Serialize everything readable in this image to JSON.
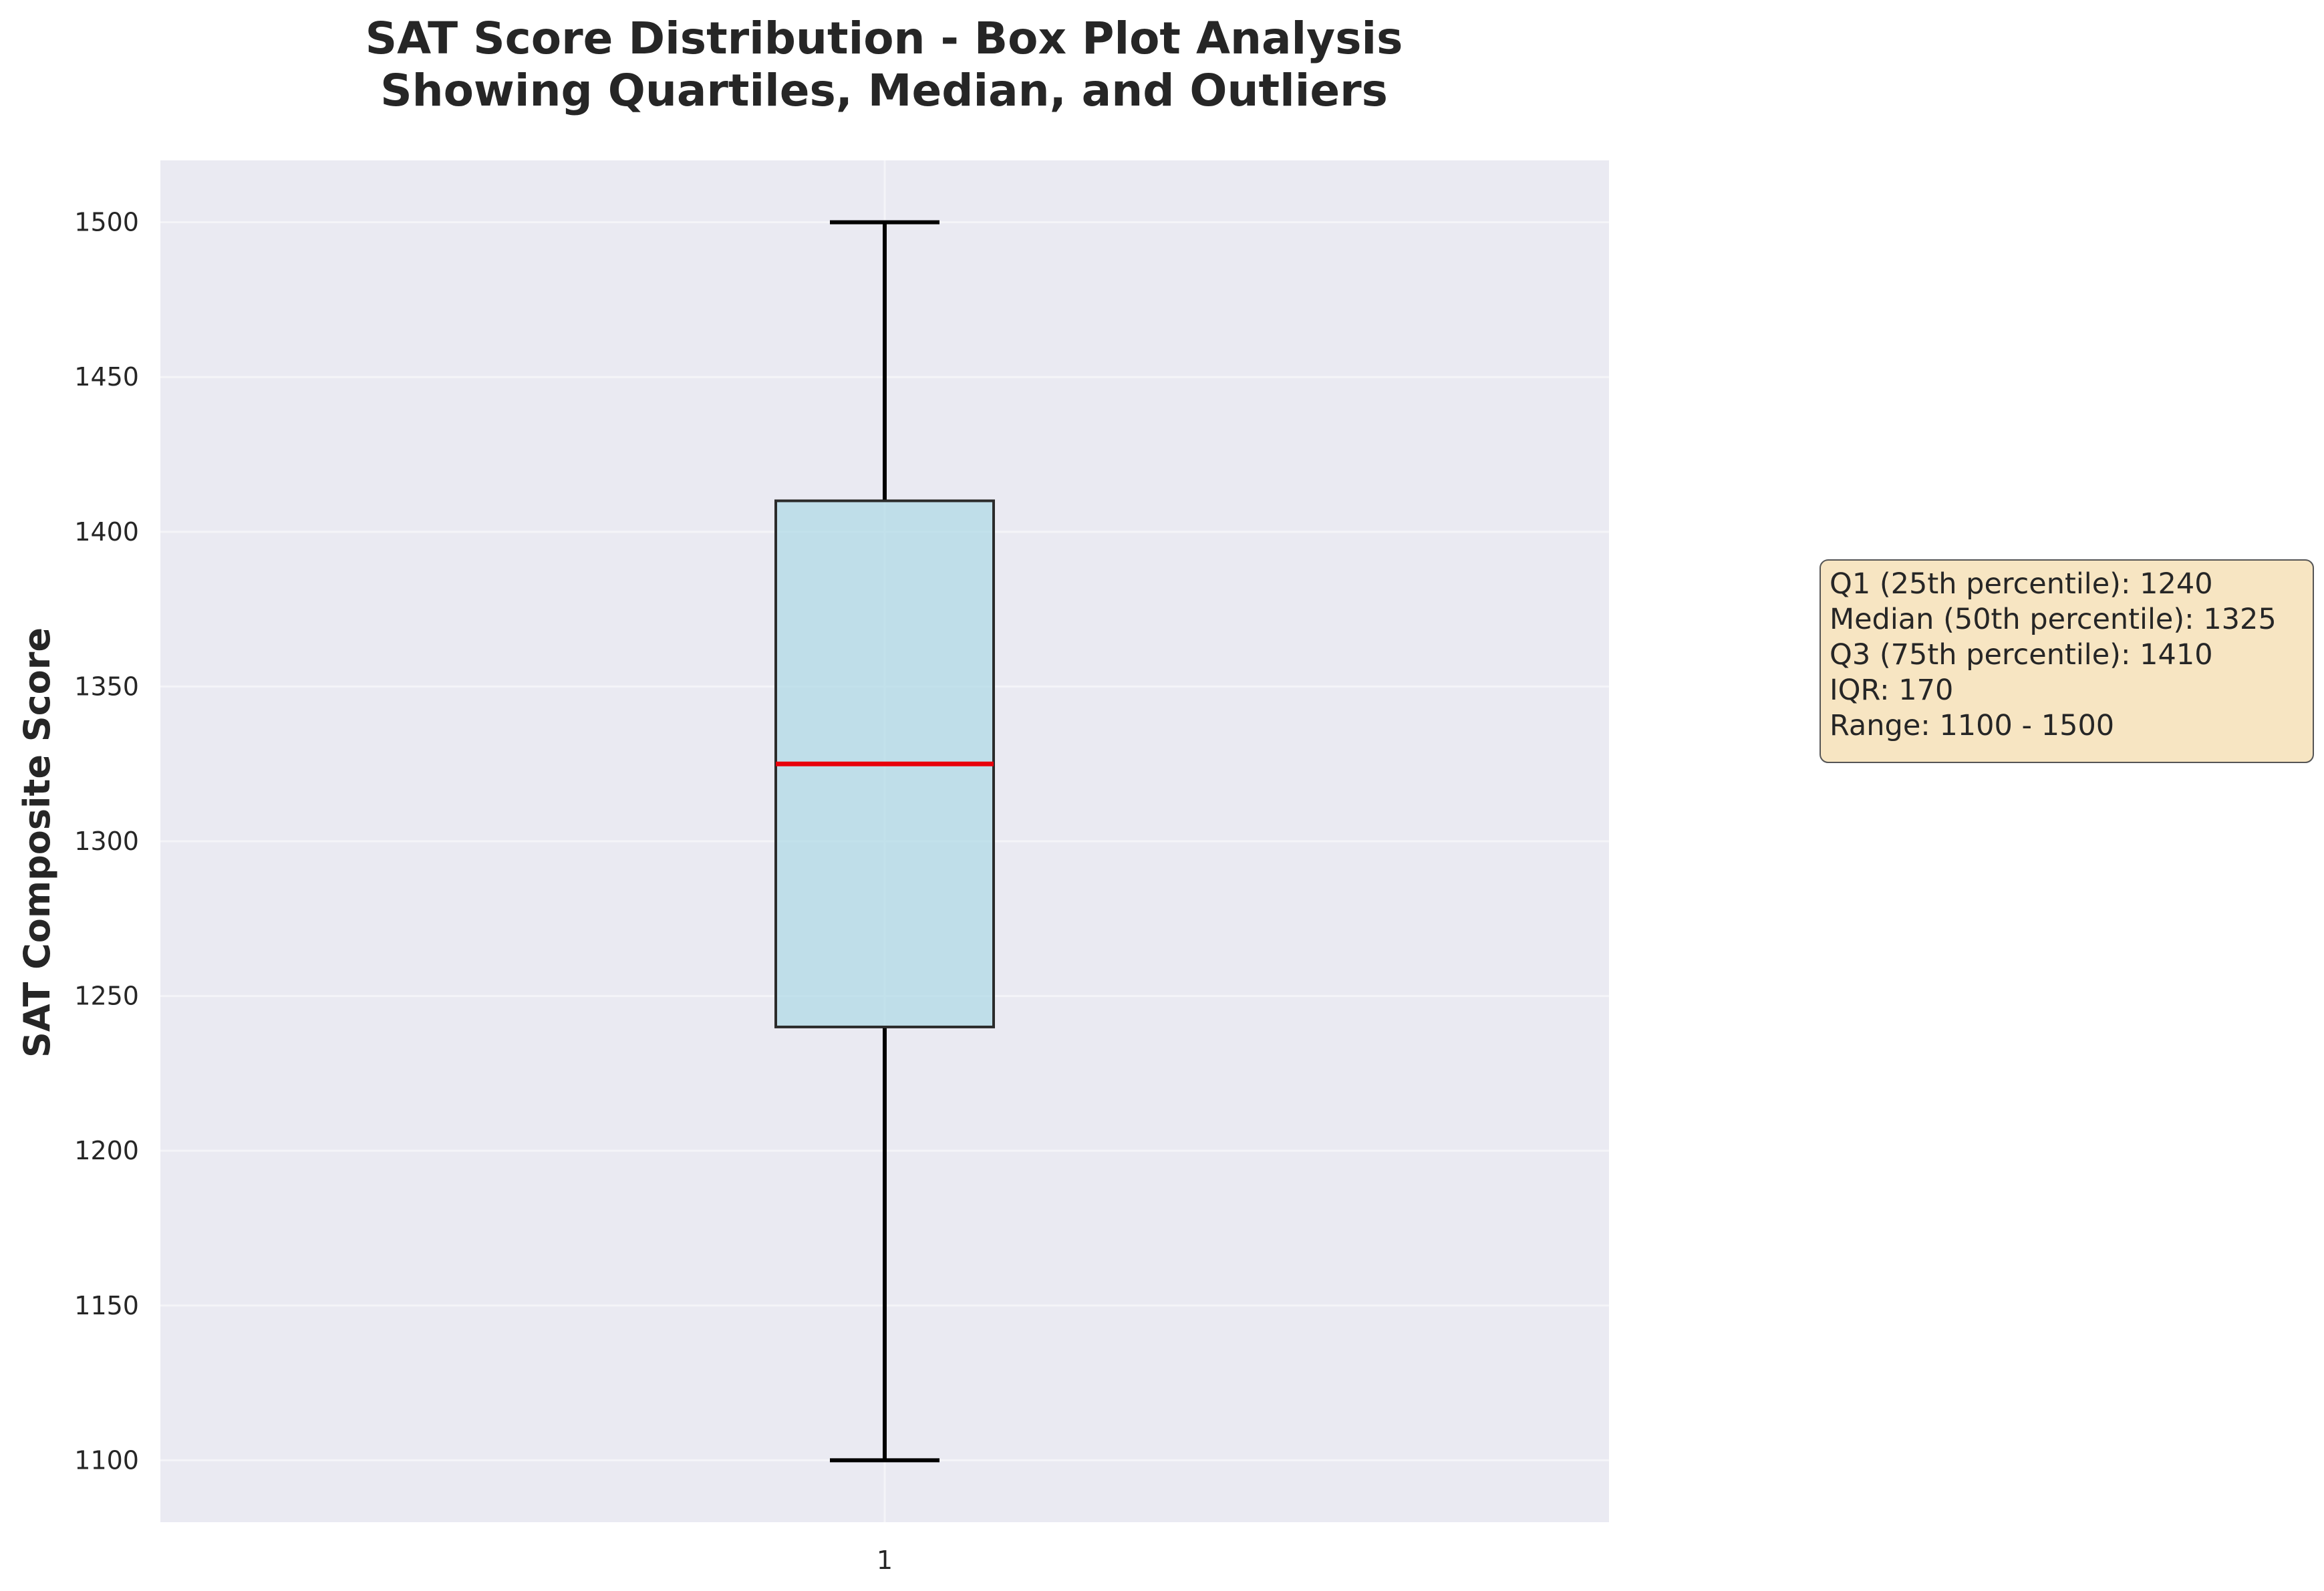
{
  "chart_data": {
    "type": "box",
    "title_lines": [
      "SAT Score Distribution - Box Plot Analysis",
      "Showing Quartiles, Median, and Outliers"
    ],
    "xlabel": "",
    "ylabel": "SAT Composite Score",
    "ylim": [
      1080,
      1520
    ],
    "y_ticks": [
      1100,
      1150,
      1200,
      1250,
      1300,
      1350,
      1400,
      1450,
      1500
    ],
    "x_ticks": [
      "1"
    ],
    "grid": true,
    "box": {
      "category": "1",
      "whisker_low": 1100,
      "q1": 1240,
      "median": 1325,
      "q3": 1410,
      "whisker_high": 1500,
      "outliers": []
    },
    "stats_text": [
      "Q1 (25th percentile): 1240",
      "Median (50th percentile): 1325",
      "Q3 (75th percentile): 1410",
      "IQR: 170",
      "Range: 1100 - 1500"
    ],
    "colors": {
      "plot_background": "#eaeaf2",
      "grid": "#f4f4f8",
      "box_fill": "#add8e6",
      "box_edge": "#2b2b2b",
      "median": "#e8000b",
      "whisker": "#000000",
      "stats_box_fill": "#f5deb3",
      "stats_box_edge": "#555555"
    }
  }
}
